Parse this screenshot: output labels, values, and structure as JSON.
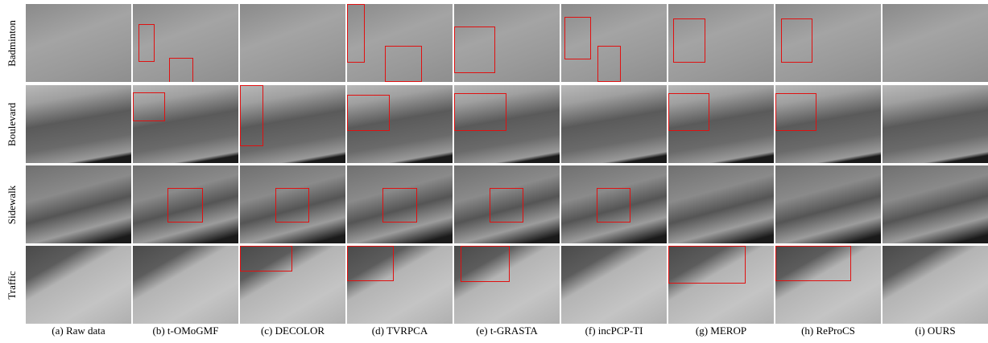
{
  "rows": [
    "Badminton",
    "Boulevard",
    "Sidewalk",
    "Traffic"
  ],
  "captions": [
    "(a) Raw data",
    "(b) t-OMoGMF",
    "(c) DECOLOR",
    "(d) TVRPCA",
    "(e) t-GRASTA",
    "(f) incPCP-TI",
    "(g) MEROP",
    "(h) ReProCS",
    "(i) OURS"
  ]
}
